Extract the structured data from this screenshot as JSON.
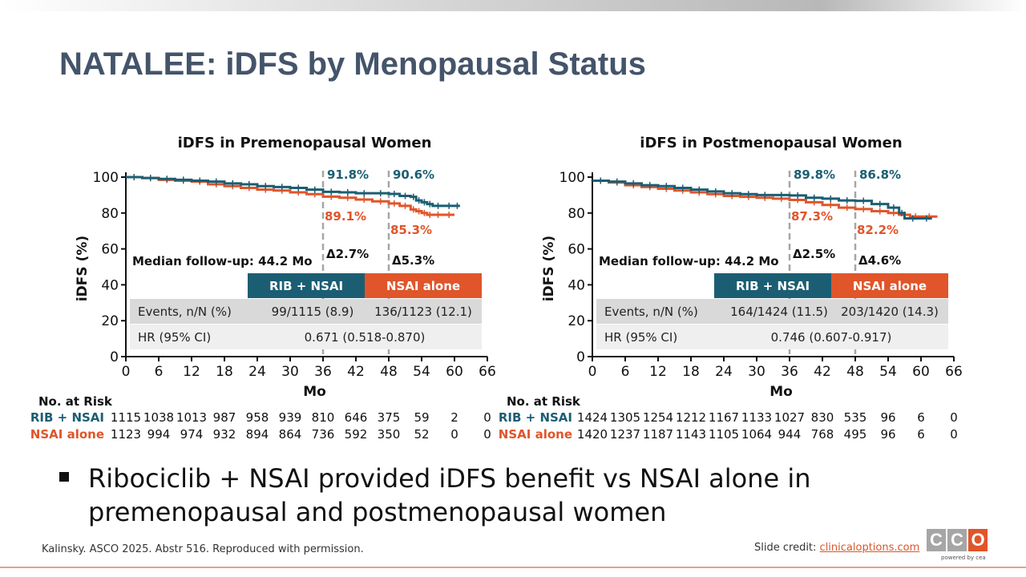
{
  "slide": {
    "title": "NATALEE: iDFS by Menopausal Status",
    "bullet": "Ribociclib + NSAI provided iDFS benefit vs NSAI alone in premenopausal and postmenopausal women",
    "footnote": "Kalinsky. ASCO 2025. Abstr 516. Reproduced with permission.",
    "credit_label": "Slide credit: ",
    "credit_link": "clinicaloptions.com",
    "logo_letters": [
      "C",
      "C",
      "O"
    ],
    "logo_sub": "powered by cea"
  },
  "colors": {
    "rib": "#1b5e73",
    "nsai": "#e0552a",
    "title": "#44546a",
    "table_light": "#d9d9d9",
    "table_lighter": "#efefef",
    "dash": "#a6a6a6"
  },
  "chart_data": [
    {
      "type": "line",
      "title": "iDFS in Premenopausal Women",
      "xlabel": "Mo",
      "ylabel": "iDFS (%)",
      "xlim": [
        0,
        66
      ],
      "ylim": [
        0,
        100
      ],
      "xticks": [
        0,
        6,
        12,
        18,
        24,
        30,
        36,
        42,
        48,
        54,
        60,
        66
      ],
      "yticks": [
        0,
        20,
        40,
        60,
        80,
        100
      ],
      "median_followup": "Median follow-up: 44.2 Mo",
      "landmarks": [
        {
          "x": 36,
          "rib_label": "91.8%",
          "nsai_label": "89.1%",
          "delta": "Δ2.7%"
        },
        {
          "x": 48,
          "rib_label": "90.6%",
          "nsai_label": "85.3%",
          "delta": "Δ5.3%"
        }
      ],
      "series": [
        {
          "name": "RIB + NSAI",
          "x": [
            0,
            3,
            6,
            9,
            12,
            15,
            18,
            21,
            24,
            27,
            30,
            33,
            36,
            39,
            42,
            45,
            48,
            50,
            52,
            53,
            54,
            55,
            56,
            58,
            60,
            61
          ],
          "y": [
            100,
            99.5,
            99,
            98.5,
            98,
            97.5,
            96.5,
            96,
            95,
            94.5,
            94,
            93,
            91.8,
            91.5,
            91,
            91,
            90.6,
            89.5,
            89,
            87,
            86,
            85,
            84,
            84,
            84,
            84
          ]
        },
        {
          "name": "NSAI alone",
          "x": [
            0,
            3,
            6,
            9,
            12,
            15,
            18,
            21,
            24,
            27,
            30,
            33,
            36,
            39,
            42,
            45,
            48,
            50,
            52,
            53,
            54,
            55,
            56,
            58,
            60
          ],
          "y": [
            100,
            99.5,
            98.5,
            98,
            97.5,
            96,
            95,
            94,
            93,
            92.5,
            91.5,
            90.5,
            89.1,
            88.5,
            87.5,
            86.5,
            85.3,
            84,
            82,
            81,
            80,
            79,
            79,
            79,
            79
          ]
        }
      ],
      "table": {
        "headers": [
          "RIB + NSAI",
          "NSAI alone"
        ],
        "rows": [
          {
            "label": "Events, n/N (%)",
            "rib": "99/1115 (8.9)",
            "nsai": "136/1123 (12.1)"
          },
          {
            "label": "HR (95% CI)",
            "value": "0.671 (0.518-0.870)"
          }
        ]
      },
      "risk": {
        "heading": "No. at Risk",
        "rows": [
          {
            "name": "RIB + NSAI",
            "values": [
              "1115",
              "1038",
              "1013",
              "987",
              "958",
              "939",
              "810",
              "646",
              "375",
              "59",
              "2",
              "0"
            ]
          },
          {
            "name": "NSAI alone",
            "values": [
              "1123",
              "994",
              "974",
              "932",
              "894",
              "864",
              "736",
              "592",
              "350",
              "52",
              "0",
              "0"
            ]
          }
        ]
      }
    },
    {
      "type": "line",
      "title": "iDFS in Postmenopausal Women",
      "xlabel": "Mo",
      "ylabel": "iDFS (%)",
      "xlim": [
        0,
        66
      ],
      "ylim": [
        0,
        100
      ],
      "xticks": [
        0,
        6,
        12,
        18,
        24,
        30,
        36,
        42,
        48,
        54,
        60,
        66
      ],
      "yticks": [
        0,
        20,
        40,
        60,
        80,
        100
      ],
      "median_followup": "Median follow-up: 44.2 Mo",
      "landmarks": [
        {
          "x": 36,
          "rib_label": "89.8%",
          "nsai_label": "87.3%",
          "delta": "Δ2.5%"
        },
        {
          "x": 48,
          "rib_label": "86.8%",
          "nsai_label": "82.2%",
          "delta": "Δ4.6%"
        }
      ],
      "series": [
        {
          "name": "RIB + NSAI",
          "x": [
            0,
            3,
            6,
            9,
            12,
            15,
            18,
            21,
            24,
            27,
            30,
            33,
            36,
            39,
            42,
            45,
            48,
            51,
            54,
            56,
            57,
            60,
            62
          ],
          "y": [
            98,
            97.5,
            96.5,
            95.5,
            95,
            94,
            93,
            92,
            91,
            90.5,
            90,
            90,
            89.8,
            88.5,
            88,
            87,
            86.8,
            85,
            83,
            80,
            77,
            77,
            77
          ]
        },
        {
          "name": "NSAI alone",
          "x": [
            0,
            3,
            6,
            9,
            12,
            15,
            18,
            21,
            24,
            27,
            30,
            33,
            36,
            39,
            42,
            45,
            48,
            51,
            54,
            56,
            58,
            60,
            63
          ],
          "y": [
            98,
            97,
            95.5,
            94.5,
            93.5,
            92.5,
            91.5,
            90.5,
            89.5,
            89,
            88.5,
            88,
            87.3,
            86,
            84.5,
            83,
            82.2,
            81,
            80,
            79,
            78,
            78,
            78
          ]
        }
      ],
      "table": {
        "headers": [
          "RIB + NSAI",
          "NSAI alone"
        ],
        "rows": [
          {
            "label": "Events, n/N (%)",
            "rib": "164/1424 (11.5)",
            "nsai": "203/1420 (14.3)"
          },
          {
            "label": "HR (95% CI)",
            "value": "0.746 (0.607-0.917)"
          }
        ]
      },
      "risk": {
        "heading": "No. at Risk",
        "rows": [
          {
            "name": "RIB + NSAI",
            "values": [
              "1424",
              "1305",
              "1254",
              "1212",
              "1167",
              "1133",
              "1027",
              "830",
              "535",
              "96",
              "6",
              "0"
            ]
          },
          {
            "name": "NSAI alone",
            "values": [
              "1420",
              "1237",
              "1187",
              "1143",
              "1105",
              "1064",
              "944",
              "768",
              "495",
              "96",
              "6",
              "0"
            ]
          }
        ]
      }
    }
  ]
}
